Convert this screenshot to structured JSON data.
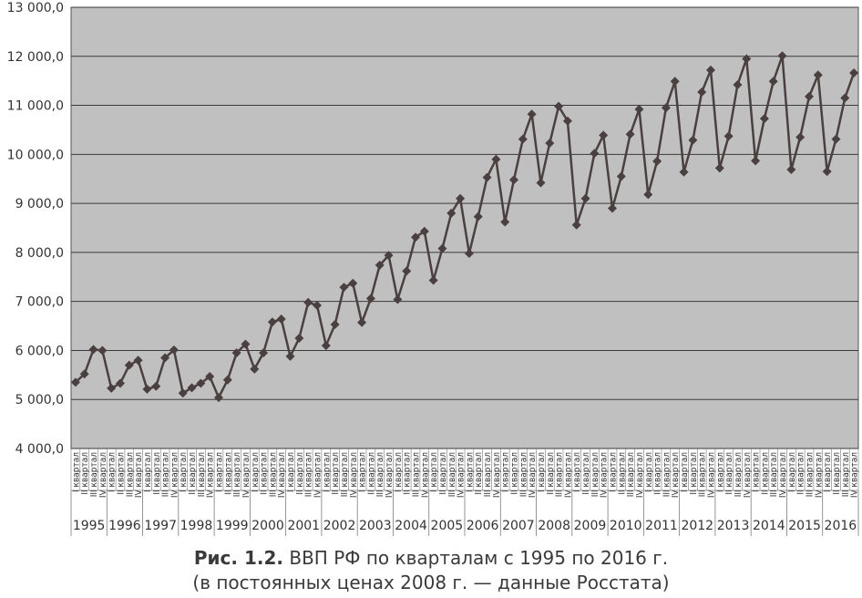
{
  "chart_data": {
    "type": "line",
    "title": "",
    "xlabel": "",
    "ylabel": "",
    "ylim": [
      4000,
      13000
    ],
    "yticks": [
      4000,
      5000,
      6000,
      7000,
      8000,
      9000,
      10000,
      11000,
      12000,
      13000
    ],
    "ytick_labels": [
      "4 000,0",
      "5 000,0",
      "6 000,0",
      "7 000,0",
      "8 000,0",
      "9 000,0",
      "10 000,0",
      "11 000,0",
      "12 000,0",
      "13 000,0"
    ],
    "grid": true,
    "legend": "none",
    "colors": {
      "plot_bg": "#c0c0c0",
      "line": "#4a4040",
      "marker": "#4a4040",
      "grid": "#3a3a3a"
    },
    "quarter_labels": [
      "I квартал",
      "II квартал",
      "III квартал",
      "IV квартал"
    ],
    "years": [
      "1995",
      "1996",
      "1997",
      "1998",
      "1999",
      "2000",
      "2001",
      "2002",
      "2003",
      "2004",
      "2005",
      "2006",
      "2007",
      "2008",
      "2009",
      "2010",
      "2011",
      "2012",
      "2013",
      "2014",
      "2015",
      "2016"
    ],
    "series": [
      {
        "values": [
          5350,
          5520,
          6020,
          6000,
          5230,
          5330,
          5700,
          5800,
          5210,
          5270,
          5850,
          6010,
          5130,
          5240,
          5330,
          5470,
          5040,
          5400,
          5950,
          6130,
          5620,
          5950,
          6580,
          6640,
          5880,
          6250,
          6980,
          6920,
          6100,
          6530,
          7290,
          7370,
          6570,
          7060,
          7740,
          7940,
          7040,
          7620,
          8310,
          8430,
          7430,
          8080,
          8800,
          9100,
          7980,
          8730,
          9530,
          9900,
          8620,
          9480,
          10310,
          10820,
          9420,
          10230,
          10980,
          10680,
          8560,
          9100,
          10020,
          10390,
          8900,
          9550,
          10410,
          10920,
          9180,
          9860,
          10950,
          11490,
          9640,
          10290,
          11270,
          11720,
          9720,
          10370,
          11420,
          11950,
          9870,
          10730,
          11490,
          12010,
          9690,
          10350,
          11180,
          11620,
          9650,
          10310,
          11150,
          11660
        ]
      }
    ]
  },
  "caption": {
    "number": "Рис. 1.2.",
    "line1": "ВВП РФ по кварталам с 1995 по 2016 г.",
    "line2": "(в постоянных ценах 2008 г. — данные Росстата)"
  }
}
